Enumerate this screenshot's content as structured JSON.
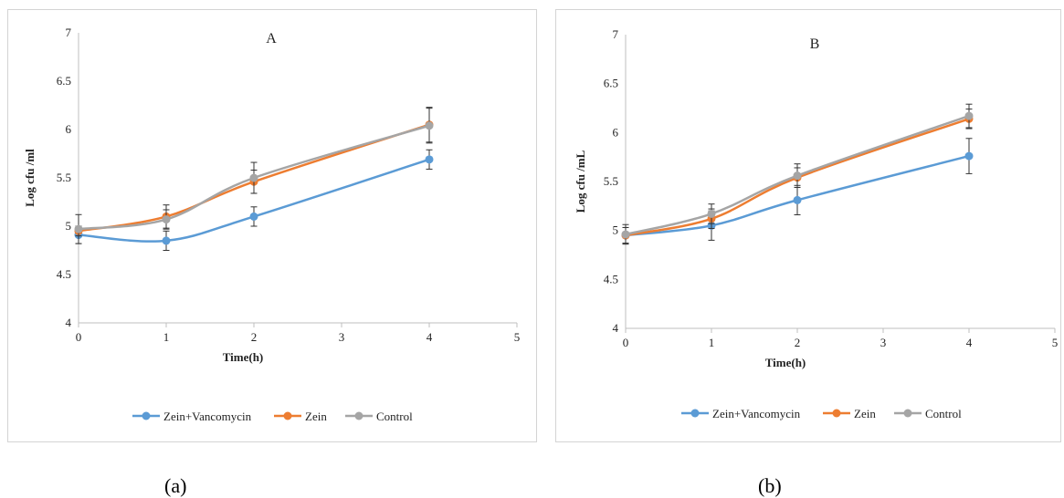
{
  "chart_data": [
    {
      "type": "line",
      "title": "A",
      "xlabel": "Time(h)",
      "ylabel": "Log cfu /ml",
      "xlim": [
        0,
        5
      ],
      "ylim": [
        4,
        7
      ],
      "xticks": [
        "0",
        "1",
        "2",
        "3",
        "4",
        "5"
      ],
      "yticks": [
        "4",
        "4.5",
        "5",
        "5.5",
        "6",
        "6.5",
        "7"
      ],
      "legend_position": "bottom",
      "grid": false,
      "x": [
        0,
        1,
        2,
        4
      ],
      "series": [
        {
          "name": "Zein+Vancomycin",
          "color": "#5b9bd5",
          "values": [
            4.91,
            4.85,
            5.1,
            5.69
          ],
          "errors": [
            0.09,
            0.1,
            0.1,
            0.1
          ]
        },
        {
          "name": "Zein",
          "color": "#ed7d31",
          "values": [
            4.95,
            5.1,
            5.46,
            6.05
          ],
          "errors": [
            0.05,
            0.12,
            0.12,
            0.18
          ]
        },
        {
          "name": "Control",
          "color": "#a5a5a5",
          "values": [
            4.97,
            5.07,
            5.5,
            6.04
          ],
          "errors": [
            0.15,
            0.1,
            0.16,
            0.18
          ]
        }
      ]
    },
    {
      "type": "line",
      "title": "B",
      "xlabel": "Time(h)",
      "ylabel": "Log cfu /mL",
      "xlim": [
        0,
        5
      ],
      "ylim": [
        4,
        7
      ],
      "xticks": [
        "0",
        "1",
        "2",
        "3",
        "4",
        "5"
      ],
      "yticks": [
        "4",
        "4.5",
        "5",
        "5.5",
        "6",
        "6.5",
        "7"
      ],
      "legend_position": "bottom",
      "grid": false,
      "x": [
        0,
        1,
        2,
        4
      ],
      "series": [
        {
          "name": "Zein+Vancomycin",
          "color": "#5b9bd5",
          "values": [
            4.95,
            5.05,
            5.31,
            5.76
          ],
          "errors": [
            0.08,
            0.15,
            0.15,
            0.18
          ]
        },
        {
          "name": "Zein",
          "color": "#ed7d31",
          "values": [
            4.95,
            5.12,
            5.54,
            6.14
          ],
          "errors": [
            0.08,
            0.1,
            0.1,
            0.1
          ]
        },
        {
          "name": "Control",
          "color": "#a5a5a5",
          "values": [
            4.96,
            5.17,
            5.56,
            6.17
          ],
          "errors": [
            0.1,
            0.1,
            0.12,
            0.12
          ]
        }
      ]
    }
  ],
  "captions": {
    "a": "(a)",
    "b": "(b)"
  }
}
